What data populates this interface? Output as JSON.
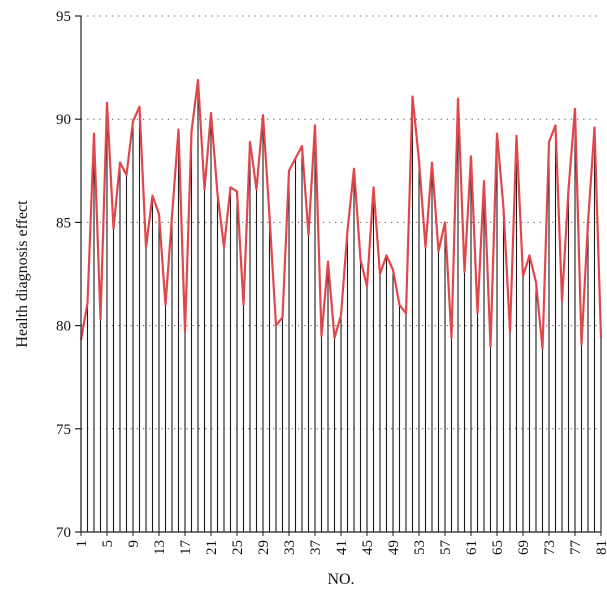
{
  "chart_data": {
    "type": "line",
    "title": "",
    "xlabel": "NO.",
    "ylabel": "Health diagnosis effect",
    "ylim": [
      70,
      95
    ],
    "yticks": [
      70,
      75,
      80,
      85,
      90,
      95
    ],
    "xlim": [
      1,
      81
    ],
    "xticks": [
      1,
      5,
      9,
      13,
      17,
      21,
      25,
      29,
      33,
      37,
      41,
      45,
      49,
      53,
      57,
      61,
      65,
      69,
      73,
      77,
      81
    ],
    "grid": "horizontal dotted",
    "legend": "none",
    "series": [
      {
        "color": "#e0474c",
        "x": [
          1,
          2,
          3,
          4,
          5,
          6,
          7,
          8,
          9,
          10,
          11,
          12,
          13,
          14,
          15,
          16,
          17,
          18,
          19,
          20,
          21,
          22,
          23,
          24,
          25,
          26,
          27,
          28,
          29,
          30,
          31,
          32,
          33,
          34,
          35,
          36,
          37,
          38,
          39,
          40,
          41,
          42,
          43,
          44,
          45,
          46,
          47,
          48,
          49,
          50,
          51,
          52,
          53,
          54,
          55,
          56,
          57,
          58,
          59,
          60,
          61,
          62,
          63,
          64,
          65,
          66,
          67,
          68,
          69,
          70,
          71,
          72,
          73,
          74,
          75,
          76,
          77,
          78,
          79,
          80,
          81
        ],
        "values": [
          79.3,
          81.1,
          89.3,
          80.3,
          90.8,
          84.7,
          87.9,
          87.3,
          89.9,
          90.6,
          83.8,
          86.3,
          85.4,
          81.0,
          85.3,
          89.5,
          79.7,
          89.4,
          91.9,
          86.6,
          90.3,
          86.4,
          83.8,
          86.7,
          86.5,
          81.0,
          88.9,
          86.6,
          90.2,
          85.3,
          80.0,
          80.4,
          87.5,
          88.1,
          88.7,
          84.4,
          89.7,
          79.5,
          83.1,
          79.4,
          80.5,
          84.6,
          87.6,
          83.2,
          81.9,
          86.7,
          82.5,
          83.4,
          82.7,
          81.0,
          80.6,
          91.1,
          88.0,
          83.8,
          87.9,
          83.6,
          85.0,
          79.4,
          91.0,
          82.6,
          88.2,
          80.6,
          87.0,
          79.0,
          89.3,
          85.7,
          79.7,
          89.2,
          82.4,
          83.4,
          82.1,
          78.9,
          88.9,
          89.7,
          81.2,
          86.6,
          90.5,
          79.1,
          85.0,
          89.6,
          79.4
        ]
      }
    ]
  },
  "colors": {
    "line": "#e0474c",
    "stem": "#1a1a1a",
    "axis": "#222222",
    "grid": "#555555"
  }
}
